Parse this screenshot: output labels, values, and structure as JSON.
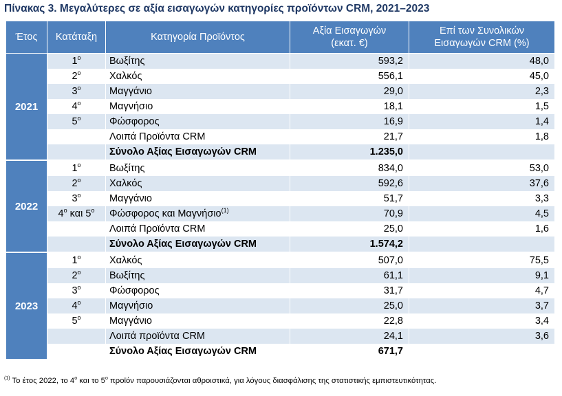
{
  "title": "Πίνακας 3. Μεγαλύτερες σε αξία εισαγωγών κατηγορίες προϊόντων CRM, 2021–2023",
  "headers": {
    "year": "Έτος",
    "rank": "Κατάταξη",
    "category": "Κατηγορία Προϊόντος",
    "value_line1": "Αξία Εισαγωγών",
    "value_line2": "(εκατ. €)",
    "share_line1": "Επί των Συνολικών",
    "share_line2": "Εισαγωγών CRM (%)"
  },
  "groups": [
    {
      "year": "2021",
      "rows": [
        {
          "rank": "1",
          "rank_sup": "ο",
          "category": "Βωξίτης",
          "value": "593,2",
          "share": "48,0"
        },
        {
          "rank": "2",
          "rank_sup": "ο",
          "category": "Χαλκός",
          "value": "556,1",
          "share": "45,0"
        },
        {
          "rank": "3",
          "rank_sup": "ο",
          "category": "Μαγγάνιο",
          "value": "29,0",
          "share": "2,3"
        },
        {
          "rank": "4",
          "rank_sup": "ο",
          "category": "Μαγνήσιο",
          "value": "18,1",
          "share": "1,5"
        },
        {
          "rank": "5",
          "rank_sup": "ο",
          "category": "Φώσφορος",
          "value": "16,9",
          "share": "1,4"
        },
        {
          "rank": "",
          "rank_sup": "",
          "category": "Λοιπά Προϊόντα CRM",
          "value": "21,7",
          "share": "1,8"
        }
      ],
      "total_label": "Σύνολο Αξίας Εισαγωγών CRM",
      "total_value": "1.235,0"
    },
    {
      "year": "2022",
      "rows": [
        {
          "rank": "1",
          "rank_sup": "ο",
          "category": "Βωξίτης",
          "value": "834,0",
          "share": "53,0"
        },
        {
          "rank": "2",
          "rank_sup": "ο",
          "category": "Χαλκός",
          "value": "592,6",
          "share": "37,6"
        },
        {
          "rank": "3",
          "rank_sup": "ο",
          "category": "Μαγγάνιο",
          "value": "51,7",
          "share": "3,3"
        },
        {
          "rank": "4",
          "rank_sup": "ο",
          "rank_mid": " και 5",
          "rank_sup2": "ο",
          "category": "Φώσφορος και Μαγνήσιο",
          "category_sup": "(1)",
          "value": "70,9",
          "share": "4,5"
        },
        {
          "rank": "",
          "rank_sup": "",
          "category": "Λοιπά Προϊόντα CRM",
          "value": "25,0",
          "share": "1,6"
        }
      ],
      "total_label": "Σύνολο Αξίας Εισαγωγών CRM",
      "total_value": "1.574,2"
    },
    {
      "year": "2023",
      "rows": [
        {
          "rank": "1",
          "rank_sup": "ο",
          "category": "Χαλκός",
          "value": "507,0",
          "share": "75,5"
        },
        {
          "rank": "2",
          "rank_sup": "ο",
          "category": "Βωξίτης",
          "value": "61,1",
          "share": "9,1"
        },
        {
          "rank": "3",
          "rank_sup": "ο",
          "category": "Φώσφορος",
          "value": "31,7",
          "share": "4,7"
        },
        {
          "rank": "4",
          "rank_sup": "ο",
          "category": "Μαγνήσιο",
          "value": "25,0",
          "share": "3,7"
        },
        {
          "rank": "5",
          "rank_sup": "ο",
          "category": "Μαγγάνιο",
          "value": "22,8",
          "share": "3,4"
        },
        {
          "rank": "",
          "rank_sup": "",
          "category": "Λοιπά προϊόντα CRM",
          "value": "24,1",
          "share": "3,6"
        }
      ],
      "total_label": "Σύνολο Αξίας Εισαγωγών CRM",
      "total_value": "671,7"
    }
  ],
  "footnote": {
    "marker": "(1)",
    "part1": " Το έτος 2022, το 4",
    "sup1": "ο",
    "part2": " και το 5",
    "sup2": "ο",
    "part3": " προϊόν παρουσιάζονται αθροιστικά, για λόγους διασφάλισης της στατιστικής εμπιστευτικότητας."
  }
}
